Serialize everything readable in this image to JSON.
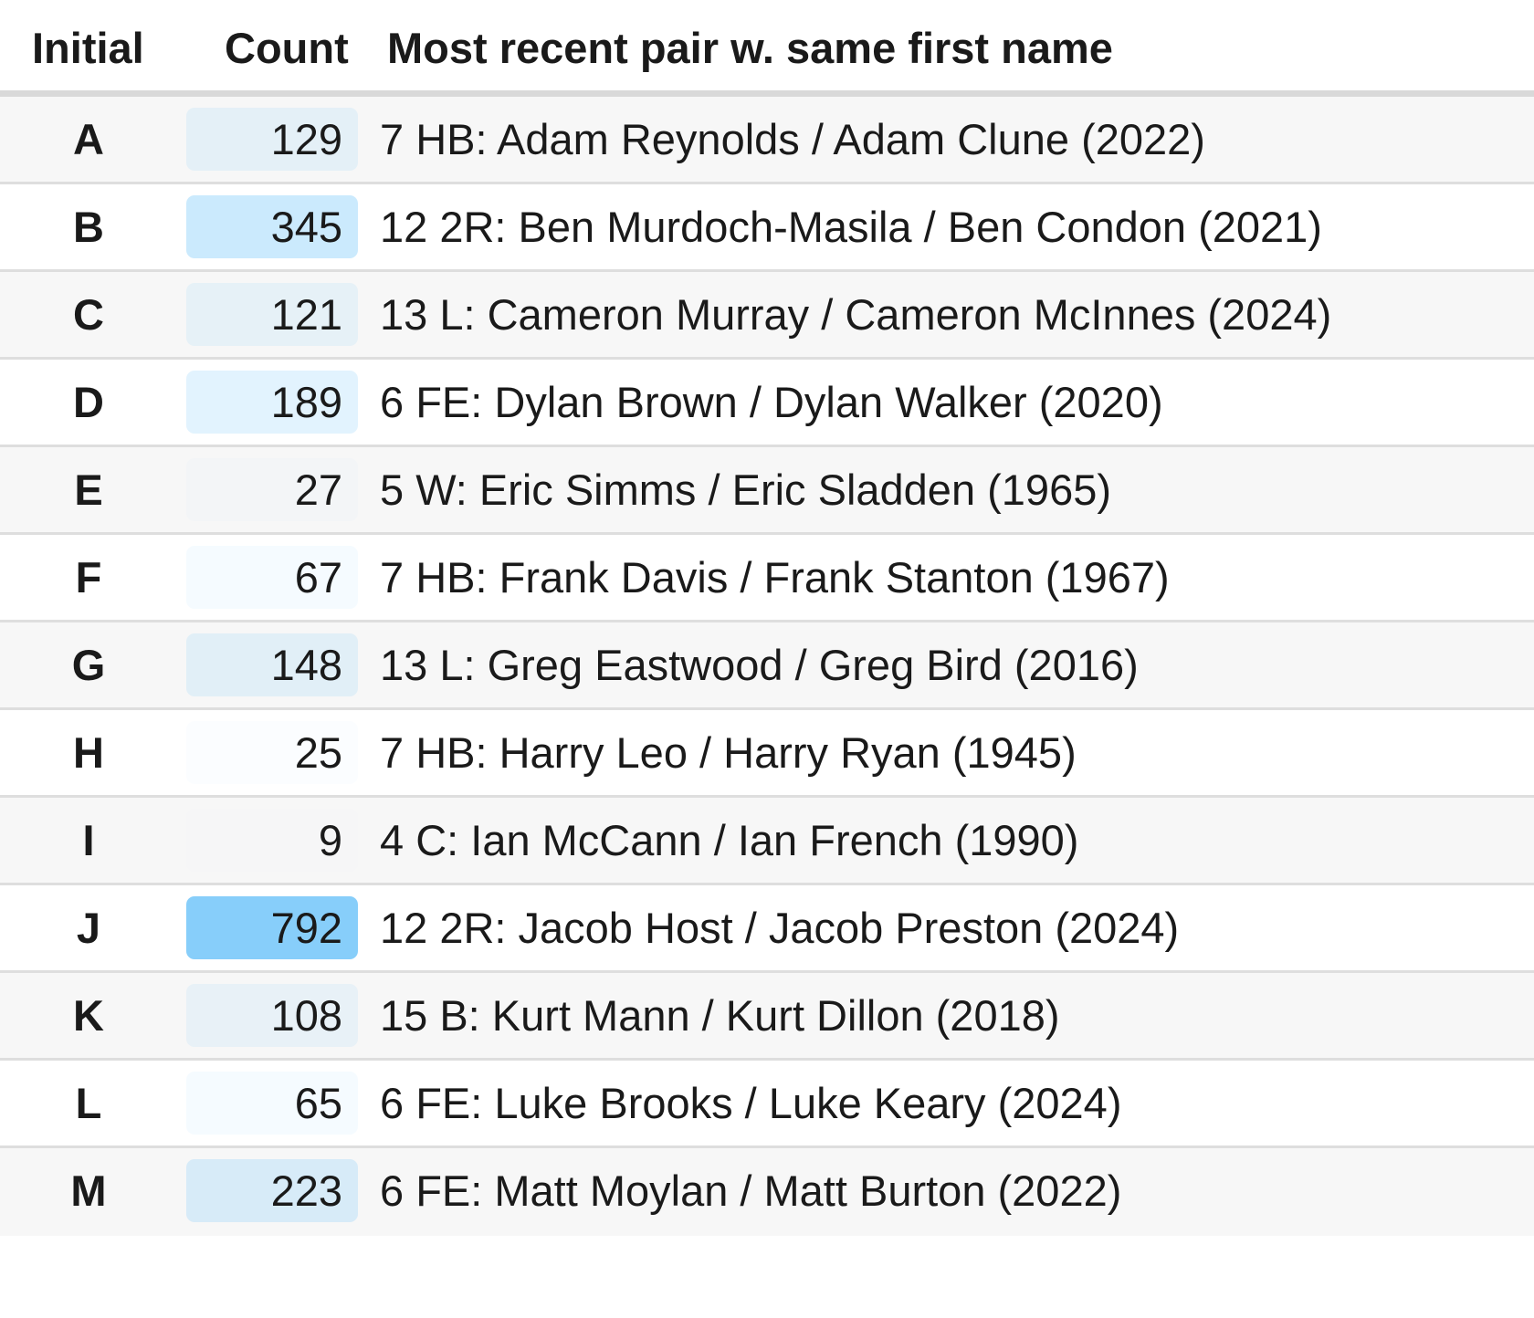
{
  "header": {
    "initial": "Initial",
    "count": "Count",
    "pair": "Most recent pair w. same first name"
  },
  "chart_data": {
    "type": "table",
    "columns": [
      "Initial",
      "Count",
      "Most recent pair w. same first name"
    ],
    "count_max": 792,
    "bar_color": "#87cefa",
    "rows": [
      {
        "initial": "A",
        "count": 129,
        "count_label": "129",
        "pair": "7 HB: Adam Reynolds / Adam Clune (2022)"
      },
      {
        "initial": "B",
        "count": 345,
        "count_label": "345",
        "pair": "12 2R: Ben Murdoch-Masila / Ben Condon (2021)"
      },
      {
        "initial": "C",
        "count": 121,
        "count_label": "121",
        "pair": "13 L: Cameron Murray / Cameron McInnes (2024)"
      },
      {
        "initial": "D",
        "count": 189,
        "count_label": "189",
        "pair": "6 FE: Dylan Brown / Dylan Walker (2020)"
      },
      {
        "initial": "E",
        "count": 27,
        "count_label": "27",
        "pair": "5 W: Eric Simms / Eric Sladden (1965)"
      },
      {
        "initial": "F",
        "count": 67,
        "count_label": "67",
        "pair": "7 HB: Frank Davis / Frank Stanton (1967)"
      },
      {
        "initial": "G",
        "count": 148,
        "count_label": "148",
        "pair": "13 L: Greg Eastwood / Greg Bird (2016)"
      },
      {
        "initial": "H",
        "count": 25,
        "count_label": "25",
        "pair": "7 HB: Harry Leo / Harry Ryan (1945)"
      },
      {
        "initial": "I",
        "count": 9,
        "count_label": "9",
        "pair": "4 C: Ian McCann / Ian French (1990)"
      },
      {
        "initial": "J",
        "count": 792,
        "count_label": "792",
        "pair": "12 2R: Jacob Host / Jacob Preston (2024)"
      },
      {
        "initial": "K",
        "count": 108,
        "count_label": "108",
        "pair": "15 B: Kurt Mann / Kurt Dillon (2018)"
      },
      {
        "initial": "L",
        "count": 65,
        "count_label": "65",
        "pair": "6 FE: Luke Brooks / Luke Keary (2024)"
      },
      {
        "initial": "M",
        "count": 223,
        "count_label": "223",
        "pair": "6 FE: Matt Moylan / Matt Burton (2022)"
      }
    ]
  }
}
